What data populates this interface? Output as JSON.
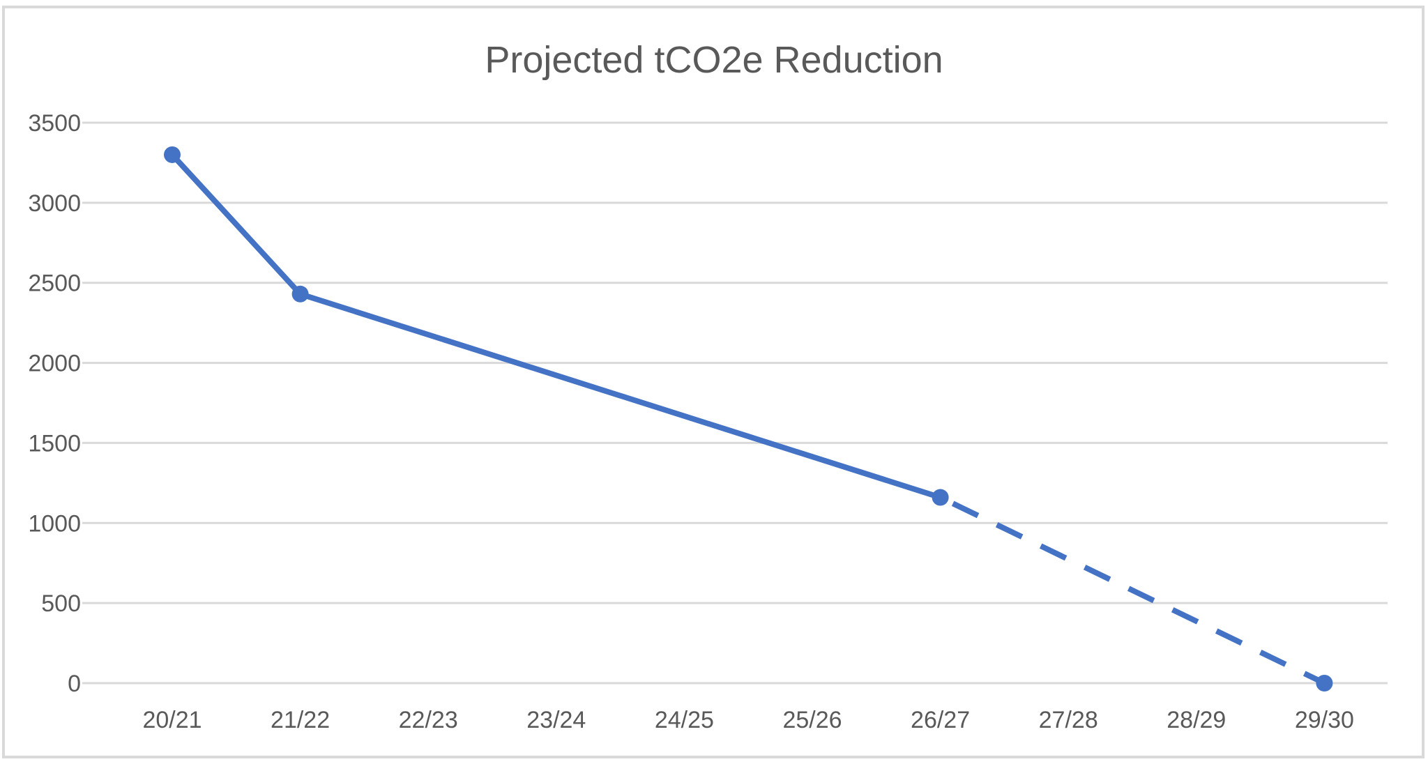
{
  "chart_data": {
    "type": "line",
    "title": "Projected tCO2e Reduction",
    "xlabel": "",
    "ylabel": "",
    "categories": [
      "20/21",
      "21/22",
      "22/23",
      "23/24",
      "24/25",
      "25/26",
      "26/27",
      "27/28",
      "28/29",
      "29/30"
    ],
    "yticks": [
      "0",
      "500",
      "1000",
      "1500",
      "2000",
      "2500",
      "3000",
      "3500"
    ],
    "ylim": [
      0,
      3500
    ],
    "grid": "horizontal",
    "legend": "none",
    "series": [
      {
        "points": [
          {
            "x": "20/21",
            "y": 3300
          },
          {
            "x": "21/22",
            "y": 2430
          },
          {
            "x": "26/27",
            "y": 1160
          }
        ],
        "line_style": "solid",
        "color": "#4472C4"
      },
      {
        "points": [
          {
            "x": "26/27",
            "y": 1160
          },
          {
            "x": "29/30",
            "y": 0
          }
        ],
        "line_style": "dashed",
        "color": "#4472C4"
      }
    ],
    "colors": {
      "series": "#4472C4",
      "grid": "#D9D9D9",
      "text": "#595959",
      "border": "#D9D9D9"
    }
  }
}
